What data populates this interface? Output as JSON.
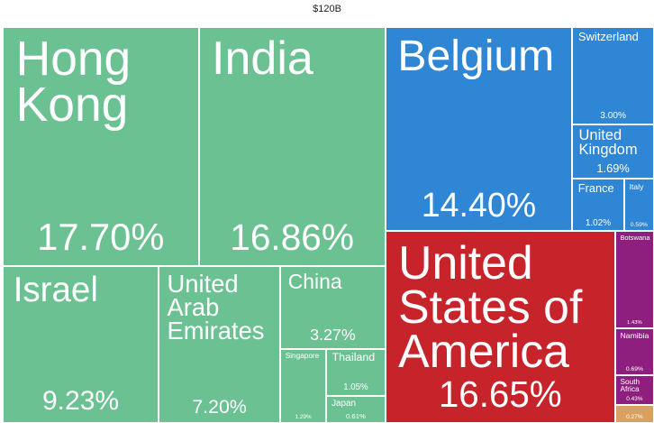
{
  "chart_data": {
    "type": "treemap",
    "title": "$120B",
    "series": [
      {
        "color": "#6cc193",
        "categories": [
          "Hong Kong",
          "India",
          "Israel",
          "United Arab Emirates",
          "China",
          "Singapore",
          "Thailand",
          "Japan"
        ],
        "values": [
          17.7,
          16.86,
          9.23,
          7.2,
          3.27,
          1.29,
          1.05,
          0.61
        ],
        "value_labels": [
          "17.70%",
          "16.86%",
          "9.23%",
          "7.20%",
          "3.27%",
          "1.29%",
          "1.05%",
          "0.61%"
        ]
      },
      {
        "color": "#2e86d4",
        "categories": [
          "Belgium",
          "Switzerland",
          "United Kingdom",
          "France",
          "Italy"
        ],
        "values": [
          14.4,
          3.0,
          1.69,
          1.02,
          0.59
        ],
        "value_labels": [
          "14.40%",
          "3.00%",
          "1.69%",
          "1.02%",
          "0.59%"
        ]
      },
      {
        "color": "#c7232a",
        "categories": [
          "United States of America"
        ],
        "values": [
          16.65
        ],
        "value_labels": [
          "16.65%"
        ]
      },
      {
        "color": "#8f1f7f",
        "categories": [
          "Botswana",
          "Namibia",
          "South Africa"
        ],
        "values": [
          1.43,
          0.69,
          0.43
        ],
        "value_labels": [
          "1.43%",
          "0.69%",
          "0.43%"
        ]
      },
      {
        "color": "#d9a062",
        "categories": [
          null
        ],
        "values": [
          0.27
        ],
        "value_labels": [
          "0.27%"
        ]
      }
    ]
  }
}
